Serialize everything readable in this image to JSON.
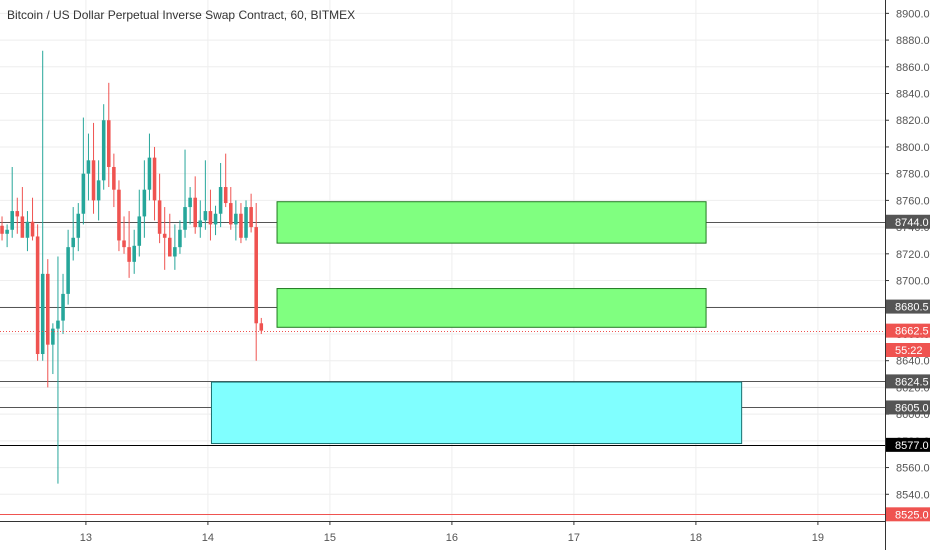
{
  "chart_data": {
    "type": "candlestick",
    "title": "Bitcoin / US Dollar Perpetual Inverse Swap Contract, 60, BITMEX",
    "y_ticks": [
      8540,
      8560,
      8580,
      8600,
      8620,
      8640,
      8660,
      8680,
      8700,
      8720,
      8740,
      8760,
      8780,
      8800,
      8820,
      8840,
      8860,
      8880,
      8900
    ],
    "y_tick_labels": [
      "8540.0",
      "8560.0",
      "8580.0",
      "8600.0",
      "8620.0",
      "8640.0",
      "8660.0",
      "8680.0",
      "8700.0",
      "8720.0",
      "8740.0",
      "8760.0",
      "8780.0",
      "8800.0",
      "8820.0",
      "8840.0",
      "8860.0",
      "8880.0",
      "8900.0"
    ],
    "ylim": [
      8520,
      8910
    ],
    "x_ticks": [
      {
        "label": "13",
        "bar": 16.5
      },
      {
        "label": "14",
        "bar": 40.5
      },
      {
        "label": "15",
        "bar": 64.5
      },
      {
        "label": "16",
        "bar": 88.5
      },
      {
        "label": "17",
        "bar": 112.5
      },
      {
        "label": "18",
        "bar": 136.5
      },
      {
        "label": "19",
        "bar": 160.5
      }
    ],
    "xlim_bars": [
      -0.4,
      173.7
    ],
    "colors": {
      "up": "#26a69a",
      "down": "#ef5350",
      "green_zone": "#80ff80",
      "cyan_zone": "#80ffff",
      "grid": "#eeeeee"
    },
    "candles": [
      [
        8741,
        8748,
        8730,
        8735
      ],
      [
        8735,
        8742,
        8725,
        8738
      ],
      [
        8738,
        8785,
        8732,
        8752
      ],
      [
        8752,
        8762,
        8735,
        8748
      ],
      [
        8748,
        8770,
        8735,
        8732
      ],
      [
        8732,
        8752,
        8722,
        8744
      ],
      [
        8744,
        8762,
        8730,
        8733
      ],
      [
        8733,
        8742,
        8640,
        8645
      ],
      [
        8645,
        8872,
        8640,
        8705
      ],
      [
        8705,
        8716,
        8620,
        8652
      ],
      [
        8652,
        8668,
        8630,
        8664
      ],
      [
        8664,
        8718,
        8548,
        8670
      ],
      [
        8670,
        8705,
        8660,
        8690
      ],
      [
        8690,
        8738,
        8682,
        8725
      ],
      [
        8725,
        8755,
        8715,
        8732
      ],
      [
        8732,
        8758,
        8722,
        8750
      ],
      [
        8750,
        8822,
        8742,
        8780
      ],
      [
        8780,
        8810,
        8760,
        8790
      ],
      [
        8790,
        8818,
        8750,
        8760
      ],
      [
        8760,
        8790,
        8745,
        8775
      ],
      [
        8775,
        8832,
        8768,
        8820
      ],
      [
        8820,
        8848,
        8770,
        8785
      ],
      [
        8785,
        8795,
        8755,
        8768
      ],
      [
        8768,
        8775,
        8722,
        8730
      ],
      [
        8730,
        8748,
        8720,
        8725
      ],
      [
        8725,
        8752,
        8702,
        8714
      ],
      [
        8714,
        8738,
        8705,
        8726
      ],
      [
        8726,
        8768,
        8718,
        8748
      ],
      [
        8748,
        8790,
        8732,
        8768
      ],
      [
        8768,
        8810,
        8760,
        8792
      ],
      [
        8792,
        8800,
        8745,
        8760
      ],
      [
        8760,
        8780,
        8728,
        8735
      ],
      [
        8735,
        8755,
        8708,
        8732
      ],
      [
        8732,
        8750,
        8718,
        8718
      ],
      [
        8718,
        8742,
        8708,
        8725
      ],
      [
        8725,
        8745,
        8720,
        8738
      ],
      [
        8738,
        8798,
        8732,
        8755
      ],
      [
        8755,
        8770,
        8742,
        8762
      ],
      [
        8762,
        8778,
        8735,
        8740
      ],
      [
        8740,
        8760,
        8732,
        8745
      ],
      [
        8745,
        8790,
        8738,
        8752
      ],
      [
        8752,
        8768,
        8730,
        8742
      ],
      [
        8742,
        8756,
        8734,
        8750
      ],
      [
        8750,
        8788,
        8740,
        8770
      ],
      [
        8770,
        8795,
        8755,
        8758
      ],
      [
        8758,
        8770,
        8738,
        8742
      ],
      [
        8742,
        8760,
        8730,
        8750
      ],
      [
        8750,
        8758,
        8728,
        8732
      ],
      [
        8732,
        8760,
        8730,
        8755
      ],
      [
        8755,
        8765,
        8736,
        8740
      ],
      [
        8740,
        8758,
        8640,
        8668
      ],
      [
        8668,
        8672,
        8660,
        8662.5
      ]
    ],
    "zones": [
      {
        "kind": "green",
        "bar_start": 54.1,
        "bar_end": 138.5,
        "low": 8728,
        "high": 8759
      },
      {
        "kind": "green",
        "bar_start": 54.1,
        "bar_end": 138.5,
        "low": 8665,
        "high": 8694
      },
      {
        "kind": "cyan",
        "bar_start": 41.2,
        "bar_end": 145.5,
        "low": 8578,
        "high": 8624
      }
    ],
    "h_lines": [
      {
        "price": 8744.0,
        "color": "#555555"
      },
      {
        "price": 8680.5,
        "color": "#555555"
      },
      {
        "price": 8624.5,
        "color": "#555555"
      },
      {
        "price": 8605.0,
        "color": "#555555"
      },
      {
        "price": 8577.0,
        "color": "#000000"
      },
      {
        "price": 8525.0,
        "color": "#ef5350"
      }
    ],
    "price_labels": [
      {
        "text": "8744.0",
        "price": 8744.0,
        "bg": "#555555"
      },
      {
        "text": "8680.5",
        "price": 8680.5,
        "bg": "#555555"
      },
      {
        "text": "8662.5",
        "price": 8662.5,
        "bg": "#ef5350"
      },
      {
        "text": "55:22",
        "price": 8648,
        "bg": "#ef5350"
      },
      {
        "text": "8624.5",
        "price": 8624.5,
        "bg": "#555555"
      },
      {
        "text": "8605.0",
        "price": 8605.0,
        "bg": "#555555"
      },
      {
        "text": "8577.0",
        "price": 8577.0,
        "bg": "#000000"
      },
      {
        "text": "8525.0",
        "price": 8525.0,
        "bg": "#ef5350"
      }
    ],
    "last_price": 8662.5
  }
}
